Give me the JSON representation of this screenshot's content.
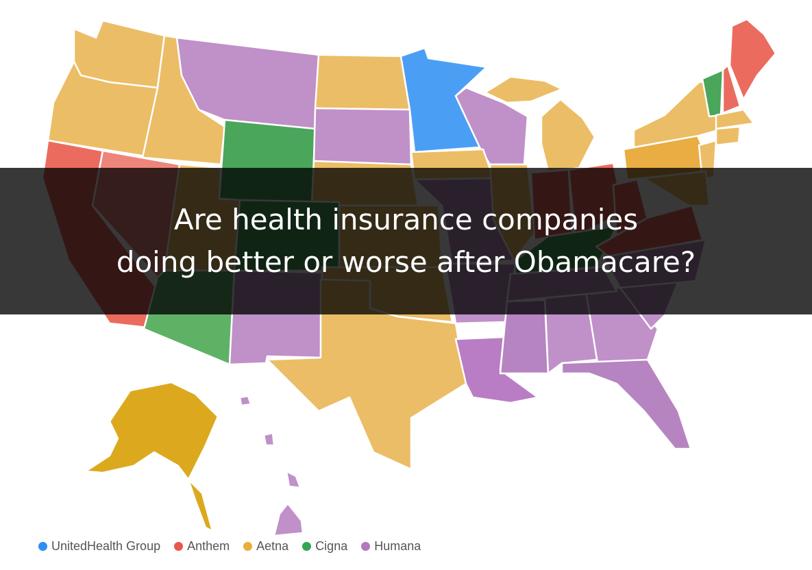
{
  "headline": {
    "line1": "Are health insurance companies",
    "line2": "doing better or worse after Obamacare?"
  },
  "legend": [
    {
      "label": "UnitedHealth Group",
      "color": "#2b8ff5",
      "company": "unitedhealth"
    },
    {
      "label": "Anthem",
      "color": "#e8574a",
      "company": "anthem"
    },
    {
      "label": "Aetna",
      "color": "#e8ae3c",
      "company": "aetna"
    },
    {
      "label": "Cigna",
      "color": "#34a455",
      "company": "cigna"
    },
    {
      "label": "Humana",
      "color": "#b278c0",
      "company": "humana"
    }
  ],
  "map_colors": {
    "unitedhealth": "#4a9ff5",
    "anthem": "#eb6b5f",
    "anthem_light": "#ee857b",
    "aetna": "#ebbd66",
    "aetna_dark": "#e9ad44",
    "aetna_alaska": "#dca91e",
    "cigna": "#4aa65a",
    "cigna_light": "#5fb166",
    "humana": "#c090c8",
    "humana_dark": "#b97dc5",
    "humana_mid": "#b684c0"
  }
}
